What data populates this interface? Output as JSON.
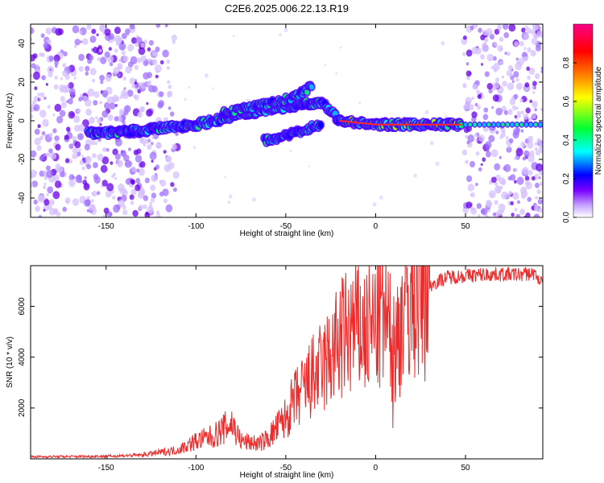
{
  "title": "C2E6.2025.006.22.13.R19",
  "chart_data": [
    {
      "type": "heatmap",
      "xlabel": "Height of straight line (km)",
      "ylabel": "Frequency (Hz)",
      "xlim": [
        -192,
        93
      ],
      "ylim": [
        -50,
        50
      ],
      "x_ticks": [
        -150,
        -100,
        -50,
        0,
        50
      ],
      "y_ticks": [
        -40,
        -20,
        0,
        20,
        40
      ],
      "colorbar": {
        "label": "Normalized spectral amplitude",
        "range": [
          0,
          1
        ],
        "ticks": [
          "0.0",
          "0.2",
          "0.4",
          "0.6",
          "0.8"
        ],
        "colors": [
          "#ffffff",
          "#c8a6ff",
          "#7a00ff",
          "#0000ff",
          "#00ffff",
          "#00ff33",
          "#ffff00",
          "#ff7a00",
          "#ff0000",
          "#ff0088"
        ]
      },
      "features": {
        "main_trace": [
          {
            "x": -160,
            "y": -6
          },
          {
            "x": -140,
            "y": -6
          },
          {
            "x": -120,
            "y": -4
          },
          {
            "x": -100,
            "y": -2
          },
          {
            "x": -80,
            "y": 2
          },
          {
            "x": -60,
            "y": 6
          },
          {
            "x": -45,
            "y": 8
          },
          {
            "x": -30,
            "y": 10
          },
          {
            "x": -20,
            "y": 0
          },
          {
            "x": -10,
            "y": -1
          },
          {
            "x": 0,
            "y": -2
          },
          {
            "x": 20,
            "y": -2
          },
          {
            "x": 48,
            "y": -2
          }
        ],
        "upper_branch": [
          {
            "x": -85,
            "y": 4
          },
          {
            "x": -70,
            "y": 7
          },
          {
            "x": -58,
            "y": 9
          },
          {
            "x": -46,
            "y": 12
          },
          {
            "x": -35,
            "y": 18
          }
        ],
        "lower_branch": [
          {
            "x": -62,
            "y": -10
          },
          {
            "x": -50,
            "y": -8
          },
          {
            "x": -38,
            "y": -4
          },
          {
            "x": -30,
            "y": -2
          }
        ]
      }
    },
    {
      "type": "line",
      "xlabel": "Height of straight line (km)",
      "ylabel": "SNR (10 * v/v)",
      "xlim": [
        -192,
        93
      ],
      "ylim": [
        0,
        7600
      ],
      "x_ticks": [
        -150,
        -100,
        -50,
        0,
        50
      ],
      "y_ticks": [
        2000,
        4000,
        6000
      ],
      "series": [
        {
          "color": "#ee2a2a",
          "points": [
            {
              "x": -192,
              "y": 80
            },
            {
              "x": -170,
              "y": 90
            },
            {
              "x": -150,
              "y": 100
            },
            {
              "x": -130,
              "y": 150
            },
            {
              "x": -120,
              "y": 250
            },
            {
              "x": -110,
              "y": 350
            },
            {
              "x": -100,
              "y": 700
            },
            {
              "x": -90,
              "y": 900
            },
            {
              "x": -80,
              "y": 1400
            },
            {
              "x": -75,
              "y": 700
            },
            {
              "x": -65,
              "y": 600
            },
            {
              "x": -60,
              "y": 800
            },
            {
              "x": -55,
              "y": 1200
            },
            {
              "x": -50,
              "y": 1600
            },
            {
              "x": -45,
              "y": 2300
            },
            {
              "x": -40,
              "y": 2700
            },
            {
              "x": -35,
              "y": 3200
            },
            {
              "x": -30,
              "y": 3500
            },
            {
              "x": -25,
              "y": 4000
            },
            {
              "x": -20,
              "y": 4600
            },
            {
              "x": -15,
              "y": 5000
            },
            {
              "x": -10,
              "y": 5200
            },
            {
              "x": -5,
              "y": 4900
            },
            {
              "x": 0,
              "y": 5300
            },
            {
              "x": 5,
              "y": 5600
            },
            {
              "x": 10,
              "y": 4200
            },
            {
              "x": 15,
              "y": 5800
            },
            {
              "x": 20,
              "y": 6200
            },
            {
              "x": 25,
              "y": 6500
            },
            {
              "x": 30,
              "y": 6800
            },
            {
              "x": 35,
              "y": 7000
            },
            {
              "x": 40,
              "y": 7150
            },
            {
              "x": 50,
              "y": 7200
            },
            {
              "x": 60,
              "y": 7250
            },
            {
              "x": 70,
              "y": 7260
            },
            {
              "x": 80,
              "y": 7250
            },
            {
              "x": 88,
              "y": 7300
            },
            {
              "x": 93,
              "y": 6900
            }
          ]
        }
      ]
    }
  ]
}
